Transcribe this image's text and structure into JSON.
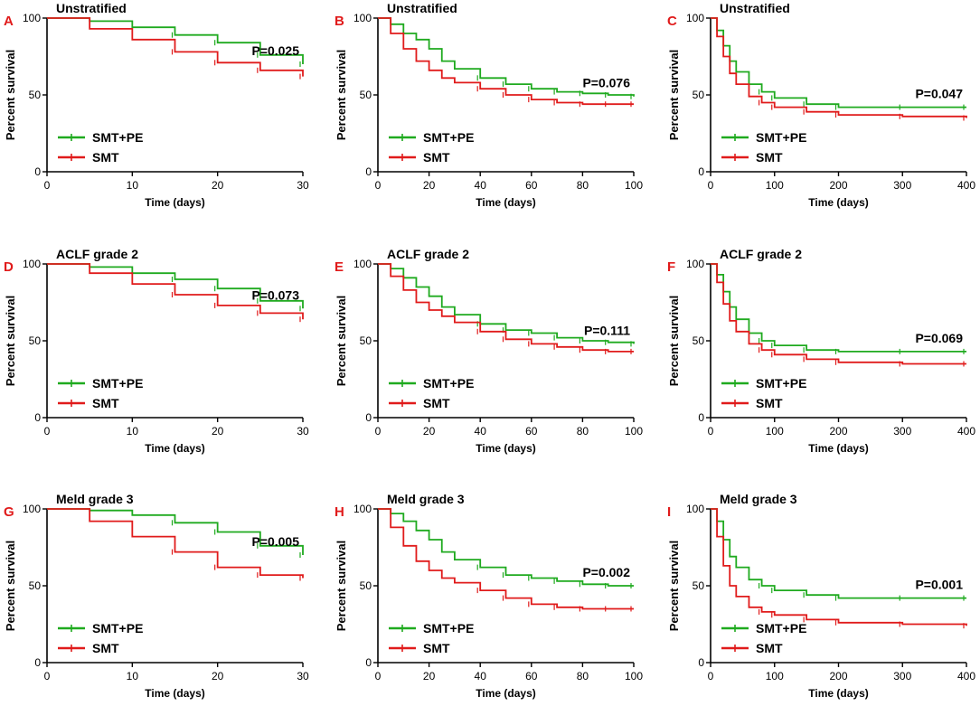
{
  "colors": {
    "treatment": "#1faa1f",
    "control": "#e01b1b",
    "axis": "#000000",
    "panel_letter": "#e01b1b"
  },
  "chart_data": [
    {
      "type": "line",
      "panel": "A",
      "title": "Unstratified",
      "xlabel": "Time (days)",
      "ylabel": "Percent survival",
      "xlim": [
        0,
        30
      ],
      "ylim": [
        0,
        100
      ],
      "xticks": [
        0,
        10,
        20,
        30
      ],
      "yticks": [
        0,
        50,
        100
      ],
      "p_value": "P=0.025",
      "series": [
        {
          "name": "SMT+PE",
          "x": [
            0,
            5,
            10,
            15,
            20,
            25,
            30
          ],
          "y": [
            100,
            98,
            94,
            89,
            84,
            76,
            70
          ]
        },
        {
          "name": "SMT",
          "x": [
            0,
            5,
            10,
            15,
            20,
            25,
            30
          ],
          "y": [
            100,
            93,
            86,
            78,
            71,
            66,
            62
          ]
        }
      ]
    },
    {
      "type": "line",
      "panel": "B",
      "title": "Unstratified",
      "xlabel": "Time (days)",
      "ylabel": "Percent survival",
      "xlim": [
        0,
        100
      ],
      "ylim": [
        0,
        100
      ],
      "xticks": [
        0,
        20,
        40,
        60,
        80,
        100
      ],
      "yticks": [
        0,
        50,
        100
      ],
      "p_value": "P=0.076",
      "series": [
        {
          "name": "SMT+PE",
          "x": [
            0,
            5,
            10,
            15,
            20,
            25,
            30,
            40,
            50,
            60,
            70,
            80,
            90,
            100
          ],
          "y": [
            100,
            96,
            90,
            86,
            80,
            72,
            67,
            61,
            57,
            54,
            52,
            51,
            50,
            49
          ]
        },
        {
          "name": "SMT",
          "x": [
            0,
            5,
            10,
            15,
            20,
            25,
            30,
            40,
            50,
            60,
            70,
            80,
            90,
            100
          ],
          "y": [
            100,
            90,
            80,
            72,
            66,
            61,
            58,
            54,
            50,
            47,
            45,
            44,
            44,
            44
          ]
        }
      ]
    },
    {
      "type": "line",
      "panel": "C",
      "title": "Unstratified",
      "xlabel": "Time (days)",
      "ylabel": "Percent survival",
      "xlim": [
        0,
        400
      ],
      "ylim": [
        0,
        100
      ],
      "xticks": [
        0,
        100,
        200,
        300,
        400
      ],
      "yticks": [
        0,
        50,
        100
      ],
      "p_value": "P=0.047",
      "series": [
        {
          "name": "SMT+PE",
          "x": [
            0,
            10,
            20,
            30,
            40,
            60,
            80,
            100,
            150,
            200,
            300,
            400
          ],
          "y": [
            100,
            92,
            82,
            72,
            65,
            57,
            52,
            48,
            44,
            42,
            42,
            42
          ]
        },
        {
          "name": "SMT",
          "x": [
            0,
            10,
            20,
            30,
            40,
            60,
            80,
            100,
            150,
            200,
            300,
            400
          ],
          "y": [
            100,
            88,
            75,
            64,
            57,
            49,
            45,
            42,
            39,
            37,
            36,
            35
          ]
        }
      ]
    },
    {
      "type": "line",
      "panel": "D",
      "title": "ACLF grade 2",
      "xlabel": "Time (days)",
      "ylabel": "Percent survival",
      "xlim": [
        0,
        30
      ],
      "ylim": [
        0,
        100
      ],
      "xticks": [
        0,
        10,
        20,
        30
      ],
      "yticks": [
        0,
        50,
        100
      ],
      "p_value": "P=0.073",
      "series": [
        {
          "name": "SMT+PE",
          "x": [
            0,
            5,
            10,
            15,
            20,
            25,
            30
          ],
          "y": [
            100,
            98,
            94,
            90,
            84,
            76,
            71
          ]
        },
        {
          "name": "SMT",
          "x": [
            0,
            5,
            10,
            15,
            20,
            25,
            30
          ],
          "y": [
            100,
            94,
            87,
            80,
            73,
            68,
            64
          ]
        }
      ]
    },
    {
      "type": "line",
      "panel": "E",
      "title": "ACLF grade 2",
      "xlabel": "Time (days)",
      "ylabel": "Percent survival",
      "xlim": [
        0,
        100
      ],
      "ylim": [
        0,
        100
      ],
      "xticks": [
        0,
        20,
        40,
        60,
        80,
        100
      ],
      "yticks": [
        0,
        50,
        100
      ],
      "p_value": "P=0.111",
      "series": [
        {
          "name": "SMT+PE",
          "x": [
            0,
            5,
            10,
            15,
            20,
            25,
            30,
            40,
            50,
            60,
            70,
            80,
            90,
            100
          ],
          "y": [
            100,
            97,
            91,
            85,
            79,
            72,
            67,
            61,
            57,
            55,
            52,
            50,
            49,
            48
          ]
        },
        {
          "name": "SMT",
          "x": [
            0,
            5,
            10,
            15,
            20,
            25,
            30,
            40,
            50,
            60,
            70,
            80,
            90,
            100
          ],
          "y": [
            100,
            92,
            83,
            75,
            70,
            66,
            62,
            56,
            51,
            48,
            46,
            44,
            43,
            43
          ]
        }
      ]
    },
    {
      "type": "line",
      "panel": "F",
      "title": "ACLF grade 2",
      "xlabel": "Time (days)",
      "ylabel": "Percent survival",
      "xlim": [
        0,
        400
      ],
      "ylim": [
        0,
        100
      ],
      "xticks": [
        0,
        100,
        200,
        300,
        400
      ],
      "yticks": [
        0,
        50,
        100
      ],
      "p_value": "P=0.069",
      "series": [
        {
          "name": "SMT+PE",
          "x": [
            0,
            10,
            20,
            30,
            40,
            60,
            80,
            100,
            150,
            200,
            300,
            400
          ],
          "y": [
            100,
            93,
            82,
            72,
            64,
            55,
            50,
            47,
            44,
            43,
            43,
            43
          ]
        },
        {
          "name": "SMT",
          "x": [
            0,
            10,
            20,
            30,
            40,
            60,
            80,
            100,
            150,
            200,
            300,
            400
          ],
          "y": [
            100,
            88,
            74,
            63,
            56,
            48,
            44,
            41,
            38,
            36,
            35,
            35
          ]
        }
      ]
    },
    {
      "type": "line",
      "panel": "G",
      "title": "Meld grade 3",
      "xlabel": "Time (days)",
      "ylabel": "Percent survival",
      "xlim": [
        0,
        30
      ],
      "ylim": [
        0,
        100
      ],
      "xticks": [
        0,
        10,
        20,
        30
      ],
      "yticks": [
        0,
        50,
        100
      ],
      "p_value": "P=0.005",
      "series": [
        {
          "name": "SMT+PE",
          "x": [
            0,
            5,
            10,
            15,
            20,
            25,
            30
          ],
          "y": [
            100,
            99,
            96,
            91,
            85,
            76,
            70
          ]
        },
        {
          "name": "SMT",
          "x": [
            0,
            5,
            10,
            15,
            20,
            25,
            30
          ],
          "y": [
            100,
            92,
            82,
            72,
            62,
            57,
            55
          ]
        }
      ]
    },
    {
      "type": "line",
      "panel": "H",
      "title": "Meld grade 3",
      "xlabel": "Time (days)",
      "ylabel": "Percent survival",
      "xlim": [
        0,
        100
      ],
      "ylim": [
        0,
        100
      ],
      "xticks": [
        0,
        20,
        40,
        60,
        80,
        100
      ],
      "yticks": [
        0,
        50,
        100
      ],
      "p_value": "P=0.002",
      "series": [
        {
          "name": "SMT+PE",
          "x": [
            0,
            5,
            10,
            15,
            20,
            25,
            30,
            40,
            50,
            60,
            70,
            80,
            90,
            100
          ],
          "y": [
            100,
            97,
            92,
            86,
            80,
            72,
            67,
            62,
            57,
            55,
            53,
            51,
            50,
            50
          ]
        },
        {
          "name": "SMT",
          "x": [
            0,
            5,
            10,
            15,
            20,
            25,
            30,
            40,
            50,
            60,
            70,
            80,
            90,
            100
          ],
          "y": [
            100,
            88,
            76,
            66,
            60,
            55,
            52,
            47,
            42,
            38,
            36,
            35,
            35,
            35
          ]
        }
      ]
    },
    {
      "type": "line",
      "panel": "I",
      "title": "Meld grade 3",
      "xlabel": "Time (days)",
      "ylabel": "Percent survival",
      "xlim": [
        0,
        400
      ],
      "ylim": [
        0,
        100
      ],
      "xticks": [
        0,
        100,
        200,
        300,
        400
      ],
      "yticks": [
        0,
        50,
        100
      ],
      "p_value": "P=0.001",
      "series": [
        {
          "name": "SMT+PE",
          "x": [
            0,
            10,
            20,
            30,
            40,
            60,
            80,
            100,
            150,
            200,
            300,
            400
          ],
          "y": [
            100,
            92,
            80,
            69,
            62,
            54,
            50,
            47,
            44,
            42,
            42,
            42
          ]
        },
        {
          "name": "SMT",
          "x": [
            0,
            10,
            20,
            30,
            40,
            60,
            80,
            100,
            150,
            200,
            300,
            400
          ],
          "y": [
            100,
            82,
            63,
            50,
            43,
            36,
            33,
            31,
            28,
            26,
            25,
            24
          ]
        }
      ]
    }
  ]
}
